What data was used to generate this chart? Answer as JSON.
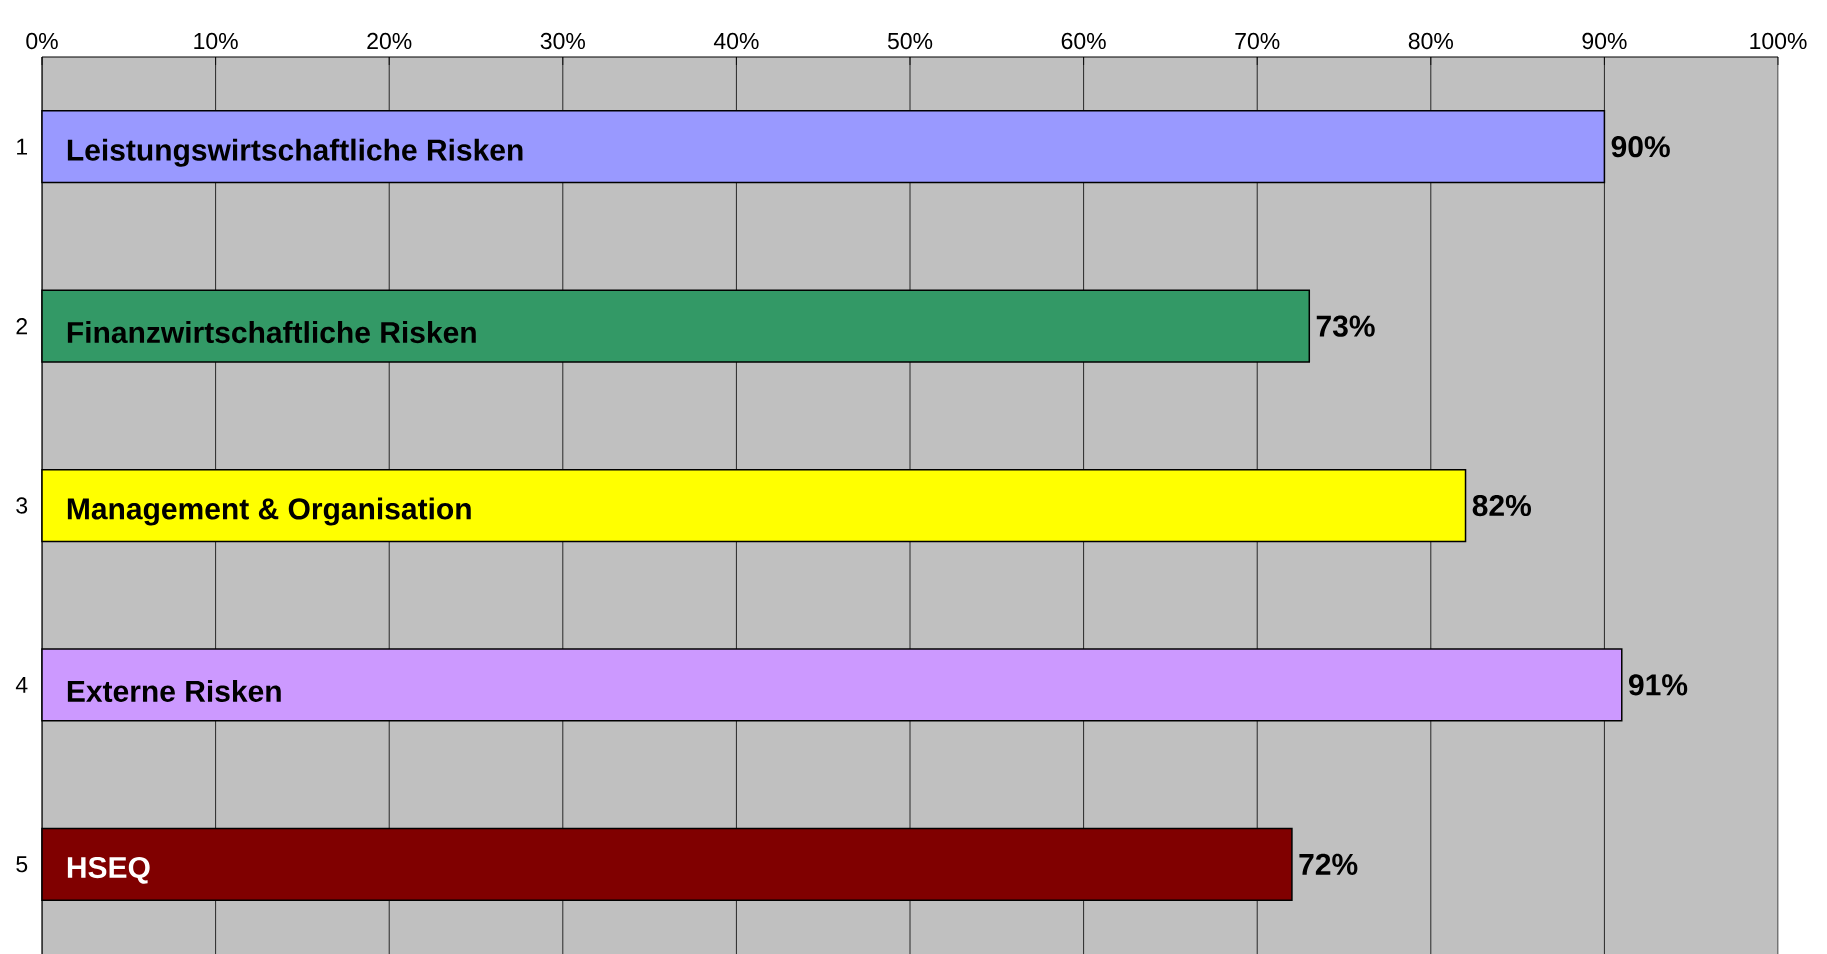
{
  "chart_data": {
    "type": "bar",
    "orientation": "horizontal",
    "categories": [
      "1",
      "2",
      "3",
      "4",
      "5"
    ],
    "values": [
      90,
      73,
      82,
      91,
      72
    ],
    "colors": [
      "#9999ff",
      "#339966",
      "#ffff00",
      "#cc99ff",
      "#800000"
    ],
    "value_labels": [
      "90%",
      "73%",
      "82%",
      "91%",
      "72%"
    ],
    "xlim": [
      0,
      100
    ],
    "xticks": [
      {
        "value": 0,
        "label": "0%"
      },
      {
        "value": 10,
        "label": "10%"
      },
      {
        "value": 20,
        "label": "20%"
      },
      {
        "value": 30,
        "label": "30%"
      },
      {
        "value": 40,
        "label": "40%"
      },
      {
        "value": 50,
        "label": "50%"
      },
      {
        "value": 60,
        "label": "60%"
      },
      {
        "value": 70,
        "label": "70%"
      },
      {
        "value": 80,
        "label": "80%"
      },
      {
        "value": 90,
        "label": "90%"
      },
      {
        "value": 100,
        "label": "100%"
      }
    ],
    "grid": "x",
    "annotations": [
      "Leistungswirtschaftliche Risken",
      "Finanzwirtschaftliche Risken",
      "Management & Organisation",
      "Externe Risken",
      "HSEQ"
    ]
  }
}
